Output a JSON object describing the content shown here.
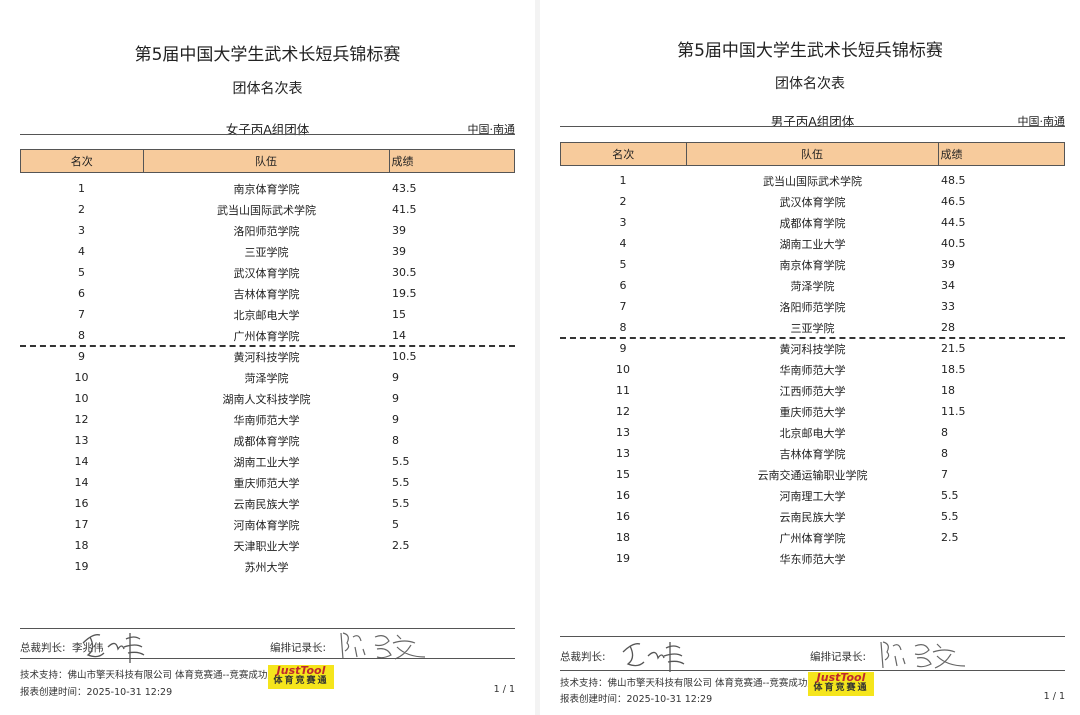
{
  "pages": [
    {
      "title": "第5届中国大学生武术长短兵锦标赛",
      "subtitle": "团体名次表",
      "group": "女子丙A组团体",
      "location": "中国·南通",
      "headers": [
        "名次",
        "队伍",
        "成绩"
      ],
      "rows": [
        [
          "1",
          "南京体育学院",
          "43.5"
        ],
        [
          "2",
          "武当山国际武术学院",
          "41.5"
        ],
        [
          "3",
          "洛阳师范学院",
          "39"
        ],
        [
          "4",
          "三亚学院",
          "39"
        ],
        [
          "5",
          "武汉体育学院",
          "30.5"
        ],
        [
          "6",
          "吉林体育学院",
          "19.5"
        ],
        [
          "7",
          "北京邮电大学",
          "15"
        ],
        [
          "8",
          "广州体育学院",
          "14"
        ],
        [
          "9",
          "黄河科技学院",
          "10.5"
        ],
        [
          "10",
          "菏泽学院",
          "9"
        ],
        [
          "10",
          "湖南人文科技学院",
          "9"
        ],
        [
          "12",
          "华南师范大学",
          "9"
        ],
        [
          "13",
          "成都体育学院",
          "8"
        ],
        [
          "14",
          "湖南工业大学",
          "5.5"
        ],
        [
          "14",
          "重庆师范大学",
          "5.5"
        ],
        [
          "16",
          "云南民族大学",
          "5.5"
        ],
        [
          "17",
          "河南体育学院",
          "5"
        ],
        [
          "18",
          "天津职业大学",
          "2.5"
        ],
        [
          "19",
          "苏州大学",
          ""
        ]
      ],
      "chief_label": "总裁判长:",
      "chief_name": "李兆伟",
      "recorder_label": "编排记录长:",
      "tech": "技术支持：佛山市擎天科技有限公司  体育竞赛通--竞赛成功又轻松",
      "created": "报表创建时间：2025-10-31 12:29",
      "page_no": "1 / 1",
      "logo_top": "JustTool",
      "logo_bottom": "体育竞赛通"
    },
    {
      "title": "第5届中国大学生武术长短兵锦标赛",
      "subtitle": "团体名次表",
      "group": "男子丙A组团体",
      "location": "中国·南通",
      "headers": [
        "名次",
        "队伍",
        "成绩"
      ],
      "rows": [
        [
          "1",
          "武当山国际武术学院",
          "48.5"
        ],
        [
          "2",
          "武汉体育学院",
          "46.5"
        ],
        [
          "3",
          "成都体育学院",
          "44.5"
        ],
        [
          "4",
          "湖南工业大学",
          "40.5"
        ],
        [
          "5",
          "南京体育学院",
          "39"
        ],
        [
          "6",
          "菏泽学院",
          "34"
        ],
        [
          "7",
          "洛阳师范学院",
          "33"
        ],
        [
          "8",
          "三亚学院",
          "28"
        ],
        [
          "9",
          "黄河科技学院",
          "21.5"
        ],
        [
          "10",
          "华南师范大学",
          "18.5"
        ],
        [
          "11",
          "江西师范大学",
          "18"
        ],
        [
          "12",
          "重庆师范大学",
          "11.5"
        ],
        [
          "13",
          "北京邮电大学",
          "8"
        ],
        [
          "13",
          "吉林体育学院",
          "8"
        ],
        [
          "15",
          "云南交通运输职业学院",
          "7"
        ],
        [
          "16",
          "河南理工大学",
          "5.5"
        ],
        [
          "16",
          "云南民族大学",
          "5.5"
        ],
        [
          "18",
          "广州体育学院",
          "2.5"
        ],
        [
          "19",
          "华东师范大学",
          ""
        ]
      ],
      "chief_label": "总裁判长:",
      "chief_name": "",
      "recorder_label": "编排记录长:",
      "tech": "技术支持：佛山市擎天科技有限公司  体育竞赛通--竞赛成功又轻松",
      "created": "报表创建时间：2025-10-31 12:29",
      "page_no": "1 / 1",
      "logo_top": "JustTool",
      "logo_bottom": "体育竞赛通"
    }
  ],
  "qualify_cutoff_rank": 8
}
